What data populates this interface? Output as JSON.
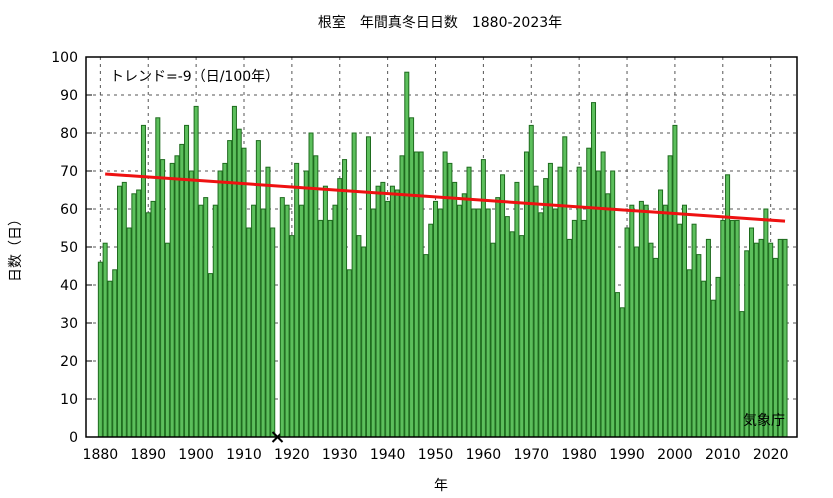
{
  "chart_data": {
    "type": "bar",
    "title": "根室　年間真冬日日数　1880-2023年",
    "xlabel": "年",
    "ylabel": "日数（日）",
    "annotation": "トレンド=-9（日/100年）",
    "source": "気象庁",
    "color": "#5cbf5c",
    "edgecolor": "#1e6b1e",
    "x": [
      1880,
      1881,
      1882,
      1883,
      1884,
      1885,
      1886,
      1887,
      1888,
      1889,
      1890,
      1891,
      1892,
      1893,
      1894,
      1895,
      1896,
      1897,
      1898,
      1899,
      1900,
      1901,
      1902,
      1903,
      1904,
      1905,
      1906,
      1907,
      1908,
      1909,
      1910,
      1911,
      1912,
      1913,
      1914,
      1915,
      1916,
      1917,
      1918,
      1919,
      1920,
      1921,
      1922,
      1923,
      1924,
      1925,
      1926,
      1927,
      1928,
      1929,
      1930,
      1931,
      1932,
      1933,
      1934,
      1935,
      1936,
      1937,
      1938,
      1939,
      1940,
      1941,
      1942,
      1943,
      1944,
      1945,
      1946,
      1947,
      1948,
      1949,
      1950,
      1951,
      1952,
      1953,
      1954,
      1955,
      1956,
      1957,
      1958,
      1959,
      1960,
      1961,
      1962,
      1963,
      1964,
      1965,
      1966,
      1967,
      1968,
      1969,
      1970,
      1971,
      1972,
      1973,
      1974,
      1975,
      1976,
      1977,
      1978,
      1979,
      1980,
      1981,
      1982,
      1983,
      1984,
      1985,
      1986,
      1987,
      1988,
      1989,
      1990,
      1991,
      1992,
      1993,
      1994,
      1995,
      1996,
      1997,
      1998,
      1999,
      2000,
      2001,
      2002,
      2003,
      2004,
      2005,
      2006,
      2007,
      2008,
      2009,
      2010,
      2011,
      2012,
      2013,
      2014,
      2015,
      2016,
      2017,
      2018,
      2019,
      2020,
      2021,
      2022,
      2023
    ],
    "values": [
      46,
      51,
      41,
      44,
      66,
      67,
      55,
      64,
      65,
      82,
      59,
      62,
      84,
      73,
      51,
      72,
      74,
      77,
      82,
      70,
      87,
      61,
      63,
      43,
      61,
      70,
      72,
      78,
      87,
      81,
      76,
      55,
      61,
      78,
      60,
      71,
      55,
      null,
      63,
      61,
      53,
      72,
      61,
      70,
      80,
      74,
      57,
      66,
      57,
      61,
      68,
      73,
      44,
      80,
      53,
      50,
      79,
      60,
      66,
      67,
      62,
      66,
      65,
      74,
      96,
      84,
      75,
      75,
      48,
      56,
      62,
      60,
      75,
      72,
      67,
      61,
      64,
      71,
      60,
      60,
      73,
      60,
      51,
      63,
      69,
      58,
      54,
      67,
      53,
      75,
      82,
      66,
      59,
      68,
      72,
      60,
      71,
      79,
      52,
      57,
      71,
      57,
      76,
      88,
      70,
      75,
      64,
      70,
      38,
      34,
      55,
      61,
      50,
      62,
      61,
      51,
      47,
      65,
      61,
      74,
      82,
      56,
      61,
      44,
      56,
      48,
      41,
      52,
      36,
      42,
      57,
      69,
      57,
      57,
      33,
      49,
      55,
      51,
      52,
      60,
      51,
      47,
      52,
      52
    ],
    "trend": {
      "color": "#ee1111",
      "x": [
        1881,
        2023
      ],
      "values": [
        69.2,
        56.8
      ]
    },
    "xlim": [
      1877,
      2025.5
    ],
    "xticks": [
      1880,
      1890,
      1900,
      1910,
      1920,
      1930,
      1940,
      1950,
      1960,
      1970,
      1980,
      1990,
      2000,
      2010,
      2020
    ],
    "ylim": [
      0,
      100
    ],
    "yticks": [
      0,
      10,
      20,
      30,
      40,
      50,
      60,
      70,
      80,
      90,
      100
    ],
    "grid": true
  }
}
